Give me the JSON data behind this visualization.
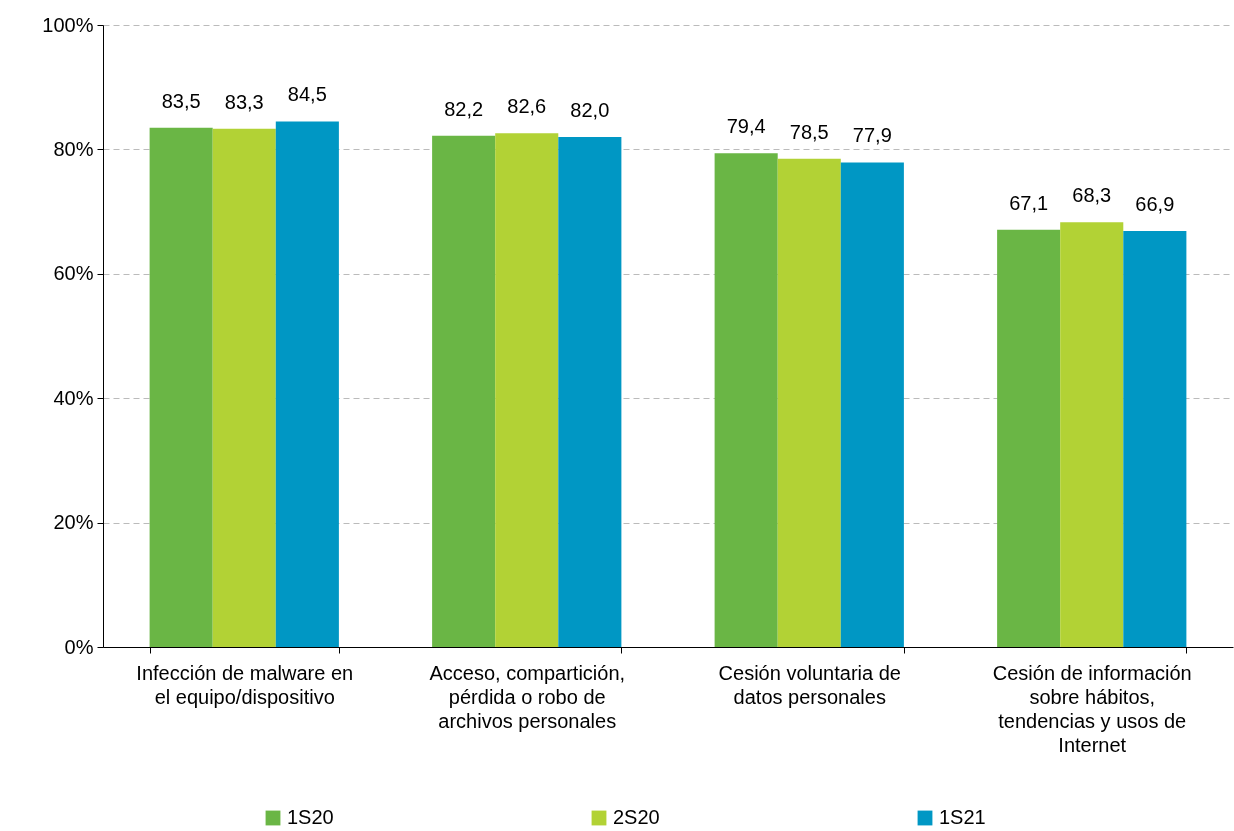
{
  "chart_data": {
    "type": "bar",
    "categories": [
      "Infección de malware en el equipo/dispositivo",
      "Acceso, compartición, pérdida o robo de archivos personales",
      "Cesión voluntaria de datos personales",
      "Cesión de información sobre hábitos, tendencias y usos de Internet"
    ],
    "series": [
      {
        "name": "1S20",
        "color": "#6ab645",
        "values": [
          83.5,
          82.2,
          79.4,
          67.1
        ],
        "value_labels": [
          "83,5",
          "82,2",
          "79,4",
          "67,1"
        ]
      },
      {
        "name": "2S20",
        "color": "#b2d235",
        "values": [
          83.3,
          82.6,
          78.5,
          68.3
        ],
        "value_labels": [
          "83,3",
          "82,6",
          "78,5",
          "68,3"
        ]
      },
      {
        "name": "1S21",
        "color": "#0097c4",
        "values": [
          84.5,
          82.0,
          77.9,
          66.9
        ],
        "value_labels": [
          "84,5",
          "82,0",
          "77,9",
          "66,9"
        ]
      }
    ],
    "ylim": [
      0,
      100
    ],
    "yticks": [
      {
        "value": 0,
        "label": "0%"
      },
      {
        "value": 20,
        "label": "20%"
      },
      {
        "value": 40,
        "label": "40%"
      },
      {
        "value": 60,
        "label": "60%"
      },
      {
        "value": 80,
        "label": "80%"
      },
      {
        "value": 100,
        "label": "100%"
      }
    ],
    "grid": "y",
    "legend": "bottom"
  }
}
